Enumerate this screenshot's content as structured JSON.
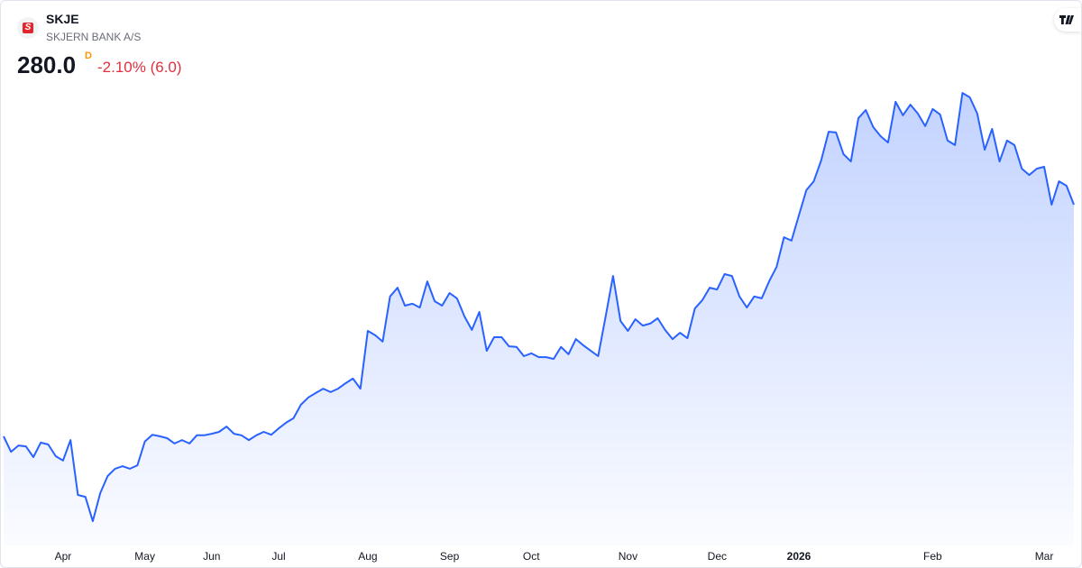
{
  "header": {
    "symbol": "SKJE",
    "name": "SKJERN BANK A/S",
    "price": "280.0",
    "interval": "D",
    "change": "-2.10% (6.0)"
  },
  "chart_data": {
    "type": "area",
    "color": "#2962ff",
    "values": [
      206.6,
      201.7,
      203.7,
      203.4,
      200,
      204.6,
      204,
      200.3,
      198.9,
      205.4,
      188,
      187.4,
      179.7,
      188.6,
      194,
      196.3,
      197.1,
      196.3,
      197.4,
      204.9,
      207.1,
      206.6,
      206,
      204.3,
      205.4,
      204.3,
      206.9,
      206.9,
      207.4,
      208,
      209.7,
      207.4,
      206.9,
      205.4,
      206.9,
      208,
      207.1,
      209.1,
      210.9,
      212.3,
      216.6,
      218.9,
      220.3,
      221.7,
      220.6,
      221.7,
      223.4,
      224.9,
      221.7,
      240,
      238.6,
      236.6,
      250.9,
      253.7,
      248,
      248.6,
      247.4,
      255.7,
      249.4,
      248,
      252,
      250.3,
      244.6,
      240.3,
      246,
      233.7,
      238,
      238,
      235.1,
      234.9,
      232,
      232.9,
      231.7,
      231.7,
      231.1,
      234.9,
      232.6,
      237.4,
      235.4,
      233.7,
      232,
      244.6,
      257.4,
      243.1,
      240,
      243.7,
      241.7,
      242.3,
      244,
      240.3,
      237.4,
      239.4,
      237.7,
      247.1,
      249.7,
      253.7,
      253.1,
      258,
      257.4,
      250.9,
      247.4,
      250.9,
      250.3,
      255.7,
      260.3,
      269.7,
      268.6,
      276.6,
      284.6,
      287.4,
      294,
      303.1,
      302.9,
      296,
      293.7,
      307.4,
      310,
      304.6,
      301.7,
      299.7,
      312.6,
      308.3,
      311.7,
      308.9,
      304.9,
      310.3,
      308.6,
      300.3,
      298.9,
      315.4,
      314,
      308.9,
      297.4,
      304,
      293.7,
      300.3,
      298.9,
      291.4,
      289.4,
      291.4,
      292,
      280,
      287.4,
      286,
      280
    ],
    "ylim": [
      172,
      320
    ],
    "xticks": [
      {
        "value": 8,
        "label": "Apr"
      },
      {
        "value": 19,
        "label": "May"
      },
      {
        "value": 28,
        "label": "Jun"
      },
      {
        "value": 37,
        "label": "Jul"
      },
      {
        "value": 49,
        "label": "Aug"
      },
      {
        "value": 60,
        "label": "Sep"
      },
      {
        "value": 71,
        "label": "Oct"
      },
      {
        "value": 84,
        "label": "Nov"
      },
      {
        "value": 96,
        "label": "Dec"
      },
      {
        "value": 107,
        "label": "2026"
      },
      {
        "value": 125,
        "label": "Feb"
      },
      {
        "value": 140,
        "label": "Mar"
      }
    ]
  }
}
